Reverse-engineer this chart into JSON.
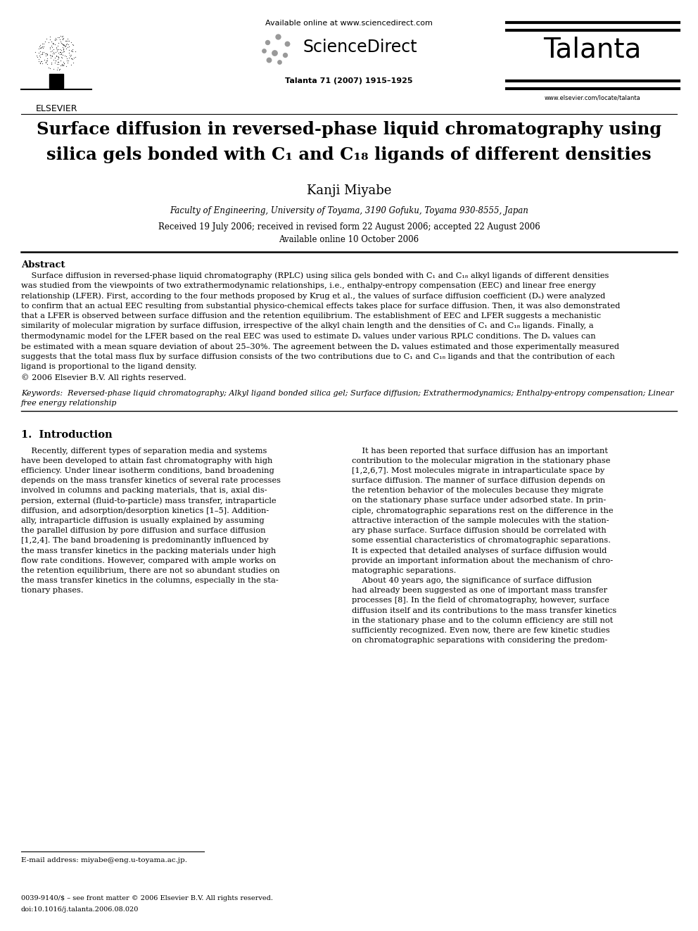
{
  "bg_color": "#ffffff",
  "page_width": 9.92,
  "page_height": 13.23,
  "header": {
    "elsevier_text": "ELSEVIER",
    "available_online": "Available online at www.sciencedirect.com",
    "sciencedirect": "ScienceDirect",
    "journal": "Talanta",
    "journal_info": "Talanta 71 (2007) 1915–1925",
    "website": "www.elsevier.com/locate/talanta"
  },
  "title_line1": "Surface diffusion in reversed-phase liquid chromatography using",
  "title_line2": "silica gels bonded with C₁ and C₁₈ ligands of different densities",
  "author": "Kanji Miyabe",
  "affiliation": "Faculty of Engineering, University of Toyama, 3190 Gofuku, Toyama 930-8555, Japan",
  "dates": "Received 19 July 2006; received in revised form 22 August 2006; accepted 22 August 2006",
  "available": "Available online 10 October 2006",
  "abstract_title": "Abstract",
  "section1_title": "1.  Introduction",
  "footnote": "E-mail address: miyabe@eng.u-toyama.ac.jp.",
  "footer1": "0039-9140/$ – see front matter © 2006 Elsevier B.V. All rights reserved.",
  "footer2": "doi:10.1016/j.talanta.2006.08.020"
}
